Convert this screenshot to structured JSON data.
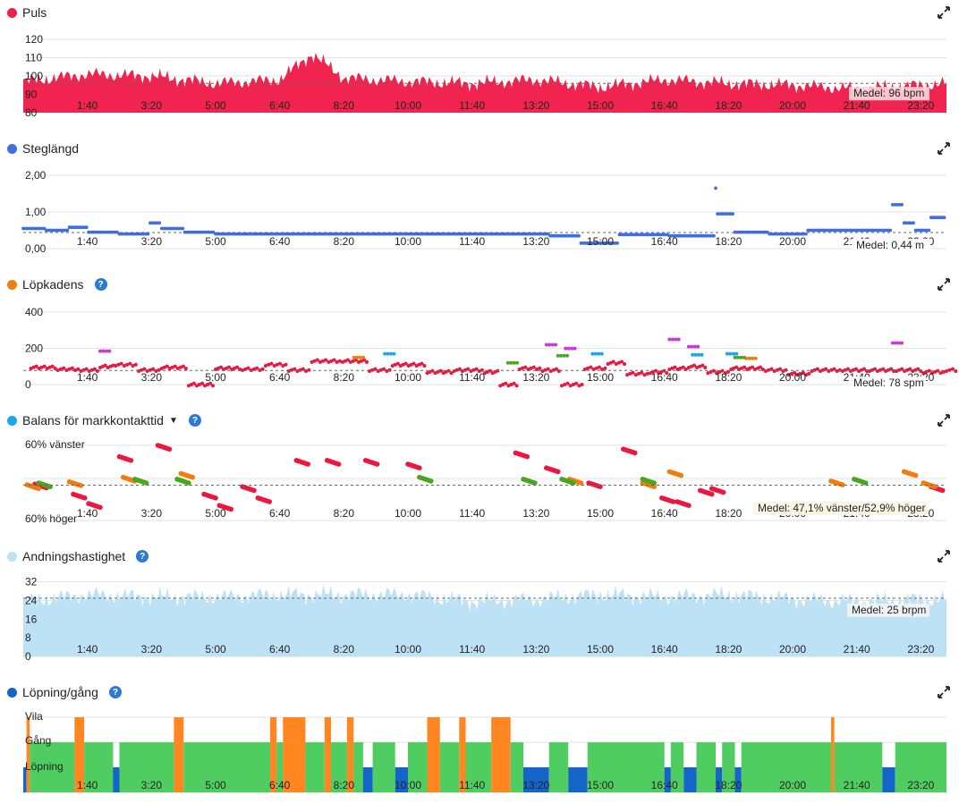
{
  "time_labels": [
    "1:40",
    "3:20",
    "5:00",
    "6:40",
    "8:20",
    "10:00",
    "11:40",
    "13:20",
    "15:00",
    "16:40",
    "18:20",
    "20:00",
    "21:40",
    "23:20"
  ],
  "colors": {
    "heart": "#f0244f",
    "stride": "#3e6ee0",
    "cadence_walk": "#ec1640",
    "cadence_orange": "#ef7d0f",
    "cadence_purple": "#c73cd9",
    "cadence_cyan": "#1aa6e8",
    "cadence_green": "#4aa520",
    "balance_red": "#ec1640",
    "balance_orange": "#ef7d0f",
    "balance_green": "#4aa520",
    "resp": "#bde2f6",
    "run": "#1565c9",
    "walk": "#4fcd60",
    "rest": "#ff8620",
    "help": "#2c7ad6"
  },
  "panels": {
    "heart": {
      "title": "Puls",
      "dot": "#ef1e4a",
      "yticks": [
        "120",
        "110",
        "100",
        "90",
        "80"
      ],
      "mean_label": "Medel: 96 bpm",
      "help": false
    },
    "stride": {
      "title": "Steglängd",
      "dot": "#3e6ee0",
      "yticks": [
        "2,00",
        "1,00",
        "0,00"
      ],
      "mean_label": "Medel: 0,44 m",
      "help": false
    },
    "cadence": {
      "title": "Löpkadens",
      "dot": "#ef7d0f",
      "yticks": [
        "400",
        "200",
        "0"
      ],
      "mean_label": "Medel: 78 spm",
      "help": true
    },
    "balance": {
      "title": "Balans för markkontakttid",
      "dot": "#1aa6e8",
      "yticks": [
        "60% vänster",
        "60% höger"
      ],
      "mean_label": "Medel: 47,1% vänster/52,9% höger",
      "help": true,
      "caret": "▼"
    },
    "resp": {
      "title": "Andningshastighet",
      "dot": "#bde2f6",
      "yticks": [
        "32",
        "24",
        "16",
        "8",
        "0"
      ],
      "mean_label": "Medel: 25 brpm",
      "help": true
    },
    "activity": {
      "title": "Löpning/gång",
      "dot": "#1565c9",
      "yticks": [
        "Vila",
        "Gång",
        "Löpning"
      ],
      "help": true
    }
  },
  "chart_data": [
    {
      "type": "area",
      "title": "Puls",
      "x_unit": "time of day",
      "ylim": [
        80,
        125
      ],
      "mean": 96,
      "x": [
        "0:00",
        "1:40",
        "3:20",
        "5:00",
        "6:40",
        "7:30",
        "8:20",
        "10:00",
        "11:40",
        "13:20",
        "15:00",
        "16:40",
        "18:20",
        "20:00",
        "21:40",
        "23:20",
        "24:00"
      ],
      "values": [
        97,
        101,
        100,
        96,
        98,
        112,
        99,
        97,
        96,
        98,
        94,
        98,
        96,
        95,
        93,
        95,
        96
      ]
    },
    {
      "type": "scatter",
      "title": "Steglängd",
      "x_unit": "time of day",
      "ylim": [
        0,
        2.2
      ],
      "mean": 0.44,
      "points": [
        [
          0.0,
          0.55
        ],
        [
          0.6,
          0.5
        ],
        [
          1.2,
          0.58
        ],
        [
          1.7,
          0.45
        ],
        [
          2.5,
          0.4
        ],
        [
          3.3,
          0.7
        ],
        [
          3.6,
          0.55
        ],
        [
          4.2,
          0.45
        ],
        [
          5.0,
          0.4
        ],
        [
          6.2,
          0.4
        ],
        [
          7.0,
          0.4
        ],
        [
          8.5,
          0.4
        ],
        [
          10.0,
          0.4
        ],
        [
          11.5,
          0.4
        ],
        [
          12.9,
          0.4
        ],
        [
          13.7,
          0.35
        ],
        [
          14.5,
          0.15
        ],
        [
          15.5,
          0.38
        ],
        [
          16.8,
          0.35
        ],
        [
          17.9,
          0.35
        ],
        [
          18.0,
          1.65
        ],
        [
          18.05,
          0.95
        ],
        [
          18.5,
          0.45
        ],
        [
          19.4,
          0.4
        ],
        [
          20.4,
          0.5
        ],
        [
          21.3,
          0.5
        ],
        [
          22.3,
          0.5
        ],
        [
          22.6,
          1.2
        ],
        [
          22.9,
          0.7
        ],
        [
          23.2,
          0.5
        ],
        [
          23.6,
          0.85
        ],
        [
          24.0,
          0.5
        ]
      ]
    },
    {
      "type": "scatter",
      "title": "Löpkadens",
      "x_unit": "time of day",
      "ylim": [
        0,
        420
      ],
      "mean": 78,
      "series": [
        {
          "color_key": "cadence_walk",
          "points": [
            [
              0.2,
              95
            ],
            [
              0.9,
              85
            ],
            [
              1.5,
              80
            ],
            [
              2.0,
              100
            ],
            [
              2.4,
              110
            ],
            [
              3.0,
              80
            ],
            [
              3.6,
              95
            ],
            [
              4.3,
              0
            ],
            [
              5.0,
              90
            ],
            [
              5.7,
              85
            ],
            [
              6.3,
              110
            ],
            [
              6.9,
              80
            ],
            [
              7.5,
              130
            ],
            [
              8.3,
              130
            ],
            [
              9.0,
              80
            ],
            [
              9.6,
              110
            ],
            [
              10.5,
              70
            ],
            [
              11.2,
              80
            ],
            [
              12.0,
              70
            ],
            [
              12.4,
              0
            ],
            [
              12.9,
              90
            ],
            [
              13.5,
              80
            ],
            [
              14.0,
              0
            ],
            [
              14.6,
              90
            ],
            [
              15.2,
              120
            ],
            [
              15.7,
              60
            ],
            [
              16.3,
              70
            ],
            [
              16.8,
              90
            ],
            [
              17.3,
              100
            ],
            [
              17.8,
              70
            ],
            [
              18.4,
              90
            ],
            [
              19.3,
              80
            ],
            [
              19.9,
              60
            ],
            [
              20.5,
              80
            ],
            [
              21.3,
              80
            ],
            [
              22.0,
              80
            ],
            [
              22.7,
              80
            ],
            [
              23.4,
              70
            ],
            [
              24.0,
              80
            ]
          ]
        },
        {
          "color_key": "cadence_orange",
          "points": [
            [
              8.6,
              150
            ],
            [
              18.8,
              145
            ]
          ]
        },
        {
          "color_key": "cadence_purple",
          "points": [
            [
              2.0,
              185
            ],
            [
              13.6,
              220
            ],
            [
              14.1,
              200
            ],
            [
              16.8,
              250
            ],
            [
              17.3,
              210
            ],
            [
              22.6,
              230
            ]
          ]
        },
        {
          "color_key": "cadence_cyan",
          "points": [
            [
              9.4,
              170
            ],
            [
              14.8,
              170
            ],
            [
              17.4,
              165
            ],
            [
              18.3,
              170
            ]
          ]
        },
        {
          "color_key": "cadence_green",
          "points": [
            [
              12.6,
              120
            ],
            [
              13.9,
              160
            ],
            [
              18.5,
              150
            ]
          ]
        }
      ]
    },
    {
      "type": "scatter",
      "title": "Balans för markkontakttid",
      "x_unit": "time of day",
      "ylim": [
        -10,
        10
      ],
      "series": [
        {
          "color_key": "balance_red",
          "points": [
            [
              0.3,
              -0.3
            ],
            [
              1.3,
              -3
            ],
            [
              1.7,
              -5.5
            ],
            [
              2.5,
              7
            ],
            [
              3.5,
              10
            ],
            [
              4.7,
              -3
            ],
            [
              5.1,
              -6
            ],
            [
              5.7,
              -1
            ],
            [
              6.1,
              -4
            ],
            [
              7.1,
              6
            ],
            [
              7.9,
              6
            ],
            [
              8.9,
              6
            ],
            [
              10.0,
              5
            ],
            [
              12.8,
              8
            ],
            [
              13.6,
              4
            ],
            [
              14.7,
              0
            ],
            [
              15.6,
              9
            ],
            [
              16.6,
              -4
            ],
            [
              17.0,
              -5
            ],
            [
              17.6,
              -2
            ],
            [
              17.9,
              -1.5
            ],
            [
              23.6,
              -1
            ]
          ]
        },
        {
          "color_key": "balance_orange",
          "points": [
            [
              0.1,
              -0.5
            ],
            [
              1.2,
              0.3
            ],
            [
              2.6,
              1.5
            ],
            [
              4.1,
              2.5
            ],
            [
              14.2,
              1
            ],
            [
              16.1,
              0
            ],
            [
              16.8,
              3
            ],
            [
              21.0,
              0.5
            ],
            [
              22.9,
              3
            ],
            [
              23.4,
              0
            ]
          ]
        },
        {
          "color_key": "balance_green",
          "points": [
            [
              0.4,
              0
            ],
            [
              2.9,
              1
            ],
            [
              4.0,
              1
            ],
            [
              10.3,
              1.5
            ],
            [
              13.0,
              1
            ],
            [
              14.0,
              1
            ],
            [
              16.1,
              1
            ],
            [
              21.6,
              1
            ]
          ]
        }
      ]
    },
    {
      "type": "area",
      "title": "Andningshastighet",
      "x_unit": "time of day",
      "ylim": [
        0,
        34
      ],
      "mean": 25,
      "x": [
        "0:00",
        "1:40",
        "3:20",
        "5:00",
        "6:40",
        "8:20",
        "10:00",
        "11:40",
        "13:20",
        "15:00",
        "16:40",
        "18:20",
        "20:00",
        "21:40",
        "23:20",
        "24:00"
      ],
      "values": [
        24,
        27,
        26,
        26,
        27,
        27,
        27,
        24,
        25,
        27,
        26,
        27,
        25,
        24,
        25,
        25
      ]
    },
    {
      "type": "bar",
      "title": "Löpning/gång",
      "x_unit": "time of day",
      "categories": [
        "Vila",
        "Gång",
        "Löpning"
      ],
      "segments": [
        [
          "0:00",
          "0:05",
          "Löpning"
        ],
        [
          "0:05",
          "0:10",
          "Vila"
        ],
        [
          "0:10",
          "1:20",
          "Gång"
        ],
        [
          "1:20",
          "1:35",
          "Vila"
        ],
        [
          "1:35",
          "2:20",
          "Gång"
        ],
        [
          "2:20",
          "2:30",
          "Löpning"
        ],
        [
          "2:30",
          "3:55",
          "Gång"
        ],
        [
          "3:55",
          "4:10",
          "Vila"
        ],
        [
          "4:10",
          "6:25",
          "Gång"
        ],
        [
          "6:25",
          "6:35",
          "Vila"
        ],
        [
          "6:35",
          "6:45",
          "Gång"
        ],
        [
          "6:45",
          "7:20",
          "Vila"
        ],
        [
          "7:20",
          "7:50",
          "Gång"
        ],
        [
          "7:50",
          "8:00",
          "Vila"
        ],
        [
          "8:00",
          "8:25",
          "Gång"
        ],
        [
          "8:25",
          "8:35",
          "Vila"
        ],
        [
          "8:35",
          "8:50",
          "Gång"
        ],
        [
          "8:50",
          "9:05",
          "Löpning"
        ],
        [
          "9:05",
          "9:40",
          "Gång"
        ],
        [
          "9:40",
          "10:00",
          "Löpning"
        ],
        [
          "10:00",
          "10:30",
          "Gång"
        ],
        [
          "10:30",
          "10:50",
          "Vila"
        ],
        [
          "10:50",
          "11:20",
          "Gång"
        ],
        [
          "11:20",
          "11:30",
          "Vila"
        ],
        [
          "11:30",
          "12:10",
          "Gång"
        ],
        [
          "12:10",
          "12:40",
          "Vila"
        ],
        [
          "12:40",
          "13:00",
          "Gång"
        ],
        [
          "13:00",
          "13:40",
          "Löpning"
        ],
        [
          "13:40",
          "14:10",
          "Gång"
        ],
        [
          "14:10",
          "14:40",
          "Löpning"
        ],
        [
          "14:40",
          "16:40",
          "Gång"
        ],
        [
          "16:40",
          "16:50",
          "Löpning"
        ],
        [
          "16:50",
          "17:10",
          "Gång"
        ],
        [
          "17:10",
          "17:30",
          "Löpning"
        ],
        [
          "17:30",
          "18:00",
          "Gång"
        ],
        [
          "18:00",
          "18:10",
          "Löpning"
        ],
        [
          "18:10",
          "18:30",
          "Gång"
        ],
        [
          "18:30",
          "18:40",
          "Löpning"
        ],
        [
          "18:40",
          "21:00",
          "Gång"
        ],
        [
          "21:00",
          "21:05",
          "Vila"
        ],
        [
          "21:05",
          "22:20",
          "Gång"
        ],
        [
          "22:20",
          "22:40",
          "Löpning"
        ],
        [
          "22:40",
          "24:00",
          "Gång"
        ]
      ]
    }
  ]
}
